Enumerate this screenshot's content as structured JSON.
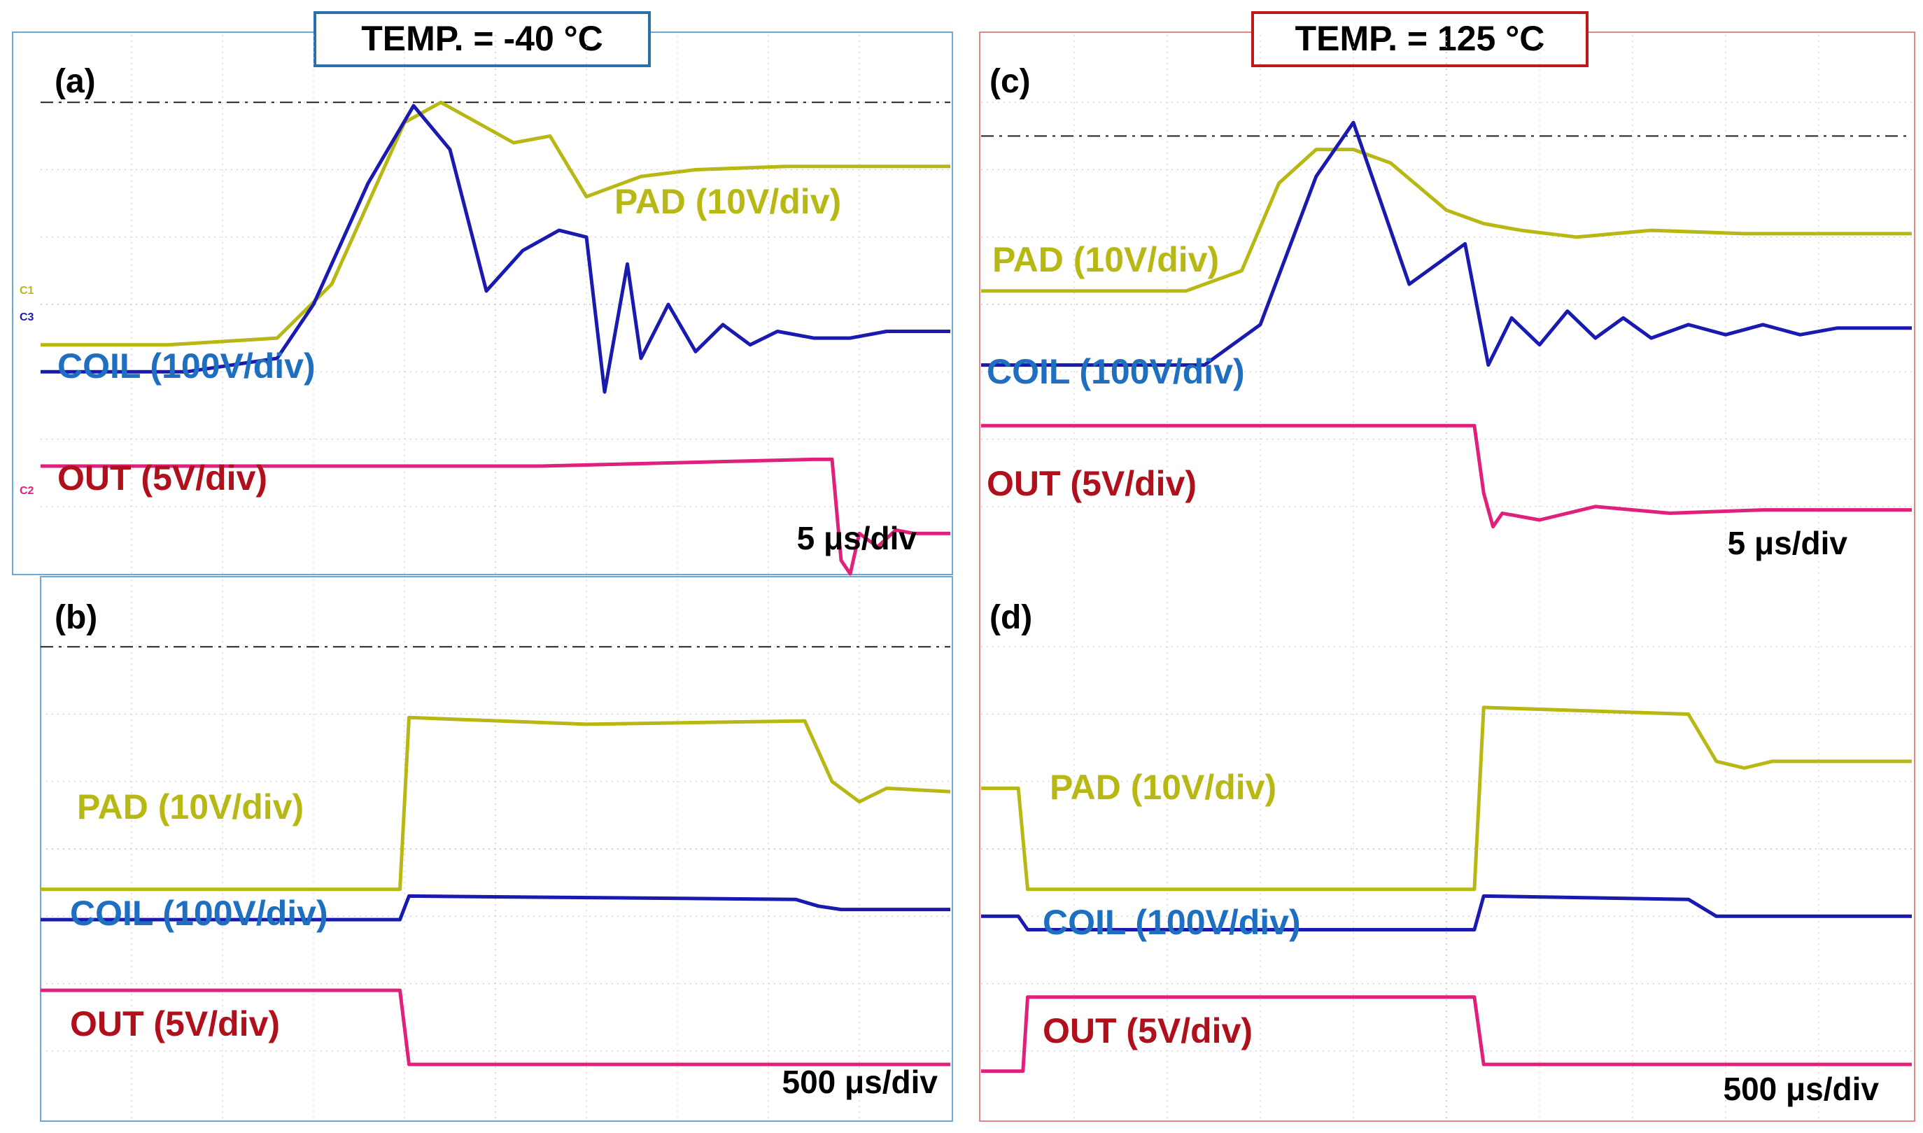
{
  "colors": {
    "pad": "#b8b814",
    "pad_dark": "#6b6b10",
    "coil": "#1a1ab0",
    "coil_label": "#1f6fc0",
    "out": "#e0207a",
    "out_dark": "#6a0a2a",
    "out_label": "#b0101c",
    "grid": "#c8c8c8",
    "frame_left": "#6aa8d8",
    "frame_right": "#e08888",
    "title_left_border": "#2a6fb0",
    "title_right_border": "#c01818"
  },
  "titles": {
    "left": "TEMP. = -40 °C",
    "right": "TEMP. = 125 °C"
  },
  "chart_data": [
    {
      "id": "a",
      "type": "line",
      "panel_label": "(a)",
      "timebase": "5 μs/div",
      "channel_markers": [
        "C1",
        "C3",
        "C2"
      ],
      "xlim": [
        0,
        10
      ],
      "ylim": [
        -4,
        4
      ],
      "reference_level_div": 3.0,
      "labels": {
        "pad": "PAD (10V/div)",
        "coil": "COIL (100V/div)",
        "out": "OUT (5V/div)"
      },
      "series": [
        {
          "name": "PAD",
          "x": [
            0,
            1.4,
            2.6,
            3.2,
            3.6,
            4.0,
            4.4,
            5.2,
            5.6,
            6.0,
            6.6,
            7.2,
            8.2,
            9.0,
            10.0
          ],
          "y": [
            -0.6,
            -0.6,
            -0.5,
            0.3,
            1.5,
            2.7,
            3.0,
            2.4,
            2.5,
            1.6,
            1.9,
            2.0,
            2.05,
            2.05,
            2.05
          ]
        },
        {
          "name": "COIL",
          "x": [
            0,
            1.6,
            2.6,
            3.0,
            3.6,
            4.1,
            4.5,
            4.9,
            5.3,
            5.7,
            6.0,
            6.2,
            6.45,
            6.6,
            6.9,
            7.2,
            7.5,
            7.8,
            8.1,
            8.5,
            8.9,
            9.3,
            10.0
          ],
          "y": [
            -1.0,
            -1.0,
            -0.8,
            0.0,
            1.8,
            2.95,
            2.3,
            0.2,
            0.8,
            1.1,
            1.0,
            -1.3,
            0.6,
            -0.8,
            0.0,
            -0.7,
            -0.3,
            -0.6,
            -0.4,
            -0.5,
            -0.5,
            -0.4,
            -0.4
          ]
        },
        {
          "name": "OUT",
          "x": [
            0,
            5.5,
            8.5,
            8.7,
            8.8,
            8.9,
            9.0,
            9.2,
            9.4,
            9.6,
            10.0
          ],
          "y": [
            -2.4,
            -2.4,
            -2.3,
            -2.3,
            -3.8,
            -4.0,
            -3.4,
            -3.6,
            -3.35,
            -3.4,
            -3.4
          ]
        }
      ]
    },
    {
      "id": "b",
      "type": "line",
      "panel_label": "(b)",
      "timebase": "500 μs/div",
      "xlim": [
        0,
        10
      ],
      "ylim": [
        -4,
        4
      ],
      "reference_level_div": 3.0,
      "labels": {
        "pad": "PAD (10V/div)",
        "coil": "COIL (100V/div)",
        "out": "OUT (5V/div)"
      },
      "series": [
        {
          "name": "PAD",
          "x": [
            0,
            3.95,
            4.05,
            6.0,
            8.4,
            8.7,
            9.0,
            9.3,
            10.0
          ],
          "y": [
            -0.6,
            -0.6,
            1.95,
            1.85,
            1.9,
            1.0,
            0.7,
            0.9,
            0.85
          ]
        },
        {
          "name": "COIL",
          "x": [
            0,
            3.95,
            4.05,
            8.3,
            8.55,
            8.8,
            10.0
          ],
          "y": [
            -1.05,
            -1.05,
            -0.7,
            -0.75,
            -0.85,
            -0.9,
            -0.9
          ]
        },
        {
          "name": "OUT",
          "x": [
            0,
            3.95,
            4.05,
            10.0
          ],
          "y": [
            -2.1,
            -2.1,
            -3.2,
            -3.2
          ]
        }
      ]
    },
    {
      "id": "c",
      "type": "line",
      "panel_label": "(c)",
      "timebase": "5 μs/div",
      "xlim": [
        0,
        10
      ],
      "ylim": [
        -4,
        4
      ],
      "reference_level_div": 2.5,
      "labels": {
        "pad": "PAD (10V/div)",
        "coil": "COIL (100V/div)",
        "out": "OUT (5V/div)"
      },
      "series": [
        {
          "name": "PAD",
          "x": [
            0,
            2.2,
            2.8,
            3.2,
            3.6,
            4.0,
            4.4,
            5.0,
            5.4,
            5.8,
            6.4,
            7.2,
            8.2,
            9.2,
            10.0
          ],
          "y": [
            0.2,
            0.2,
            0.5,
            1.8,
            2.3,
            2.3,
            2.1,
            1.4,
            1.2,
            1.1,
            1.0,
            1.1,
            1.05,
            1.05,
            1.05
          ]
        },
        {
          "name": "COIL",
          "x": [
            0,
            2.4,
            3.0,
            3.6,
            4.0,
            4.3,
            4.6,
            5.0,
            5.2,
            5.45,
            5.7,
            6.0,
            6.3,
            6.6,
            6.9,
            7.2,
            7.6,
            8.0,
            8.4,
            8.8,
            9.2,
            9.6,
            10.0
          ],
          "y": [
            -0.9,
            -0.9,
            -0.3,
            1.9,
            2.7,
            1.5,
            0.3,
            0.7,
            0.9,
            -0.9,
            -0.2,
            -0.6,
            -0.1,
            -0.5,
            -0.2,
            -0.5,
            -0.3,
            -0.45,
            -0.3,
            -0.45,
            -0.35,
            -0.35,
            -0.35
          ]
        },
        {
          "name": "OUT",
          "x": [
            0,
            5.3,
            5.4,
            5.5,
            5.6,
            6.0,
            6.6,
            7.4,
            8.4,
            9.2,
            10.0
          ],
          "y": [
            -1.8,
            -1.8,
            -2.8,
            -3.3,
            -3.1,
            -3.2,
            -3.0,
            -3.1,
            -3.05,
            -3.05,
            -3.05
          ]
        }
      ]
    },
    {
      "id": "d",
      "type": "line",
      "panel_label": "(d)",
      "timebase": "500 μs/div",
      "xlim": [
        0,
        10
      ],
      "ylim": [
        -4,
        4
      ],
      "labels": {
        "pad": "PAD (10V/div)",
        "coil": "COIL (100V/div)",
        "out": "OUT (5V/div)"
      },
      "series": [
        {
          "name": "PAD",
          "x": [
            0,
            0.4,
            0.5,
            5.3,
            5.4,
            7.6,
            7.9,
            8.2,
            8.5,
            10.0
          ],
          "y": [
            0.9,
            0.9,
            -0.6,
            -0.6,
            2.1,
            2.0,
            1.3,
            1.2,
            1.3,
            1.3
          ]
        },
        {
          "name": "COIL",
          "x": [
            0,
            0.4,
            0.5,
            5.3,
            5.4,
            7.6,
            7.9,
            8.2,
            10.0
          ],
          "y": [
            -1.0,
            -1.0,
            -1.2,
            -1.2,
            -0.7,
            -0.75,
            -1.0,
            -1.0,
            -1.0
          ]
        },
        {
          "name": "OUT",
          "x": [
            0,
            0.45,
            0.5,
            5.3,
            5.4,
            10.0
          ],
          "y": [
            -3.3,
            -3.3,
            -2.2,
            -2.2,
            -3.2,
            -3.2
          ]
        }
      ]
    }
  ]
}
